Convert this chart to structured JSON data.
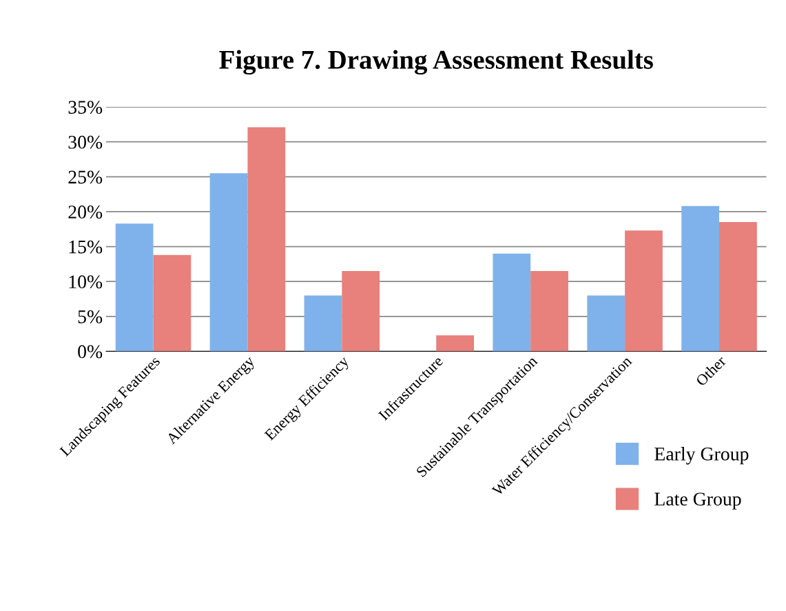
{
  "chart_data": {
    "type": "bar",
    "title": "Figure 7. Drawing Assessment Results",
    "categories": [
      "Landscaping Features",
      "Alternative Energy",
      "Energy Efficiency",
      "Infrastructure",
      "Sustainable Transportation",
      "Water Efficiency/Conservation",
      "Other"
    ],
    "series": [
      {
        "name": "Early Group",
        "color": "#7fb2ea",
        "values": [
          18.3,
          25.5,
          8.0,
          0,
          14.0,
          8.0,
          20.8
        ]
      },
      {
        "name": "Late Group",
        "color": "#e8807c",
        "values": [
          13.8,
          32.1,
          11.5,
          2.3,
          11.5,
          17.3,
          18.5
        ]
      }
    ],
    "ylim": [
      0,
      35
    ],
    "yticks": [
      {
        "value": 0,
        "label": "0%"
      },
      {
        "value": 5,
        "label": "5%"
      },
      {
        "value": 10,
        "label": "10%"
      },
      {
        "value": 15,
        "label": "15%"
      },
      {
        "value": 20,
        "label": "20%"
      },
      {
        "value": 25,
        "label": "25%"
      },
      {
        "value": 30,
        "label": "30%"
      },
      {
        "value": 35,
        "label": "35%"
      }
    ],
    "grid": "y",
    "legend": "bottom right"
  }
}
